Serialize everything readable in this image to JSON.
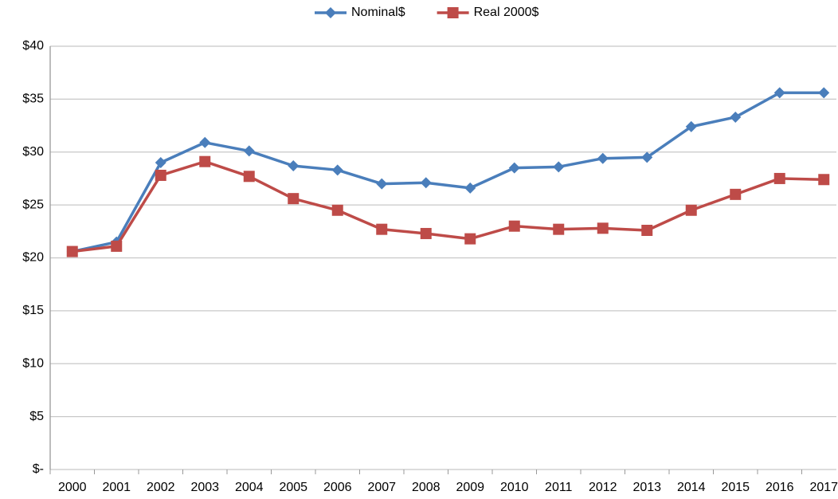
{
  "chart_data": {
    "type": "line",
    "categories": [
      "2000",
      "2001",
      "2002",
      "2003",
      "2004",
      "2005",
      "2006",
      "2007",
      "2008",
      "2009",
      "2010",
      "2011",
      "2012",
      "2013",
      "2014",
      "2015",
      "2016",
      "2017"
    ],
    "series": [
      {
        "name": "Nominal$",
        "color": "#4a7ebb",
        "marker": "diamond",
        "values": [
          20.6,
          21.5,
          29.0,
          30.9,
          30.1,
          28.7,
          28.3,
          27.0,
          27.1,
          26.6,
          28.5,
          28.6,
          29.4,
          29.5,
          32.4,
          33.3,
          35.6,
          35.6
        ]
      },
      {
        "name": "Real 2000$",
        "color": "#be4b48",
        "marker": "square",
        "values": [
          20.6,
          21.1,
          27.8,
          29.1,
          27.7,
          25.6,
          24.5,
          22.7,
          22.3,
          21.8,
          23.0,
          22.7,
          22.8,
          22.6,
          24.5,
          26.0,
          27.5,
          27.4
        ]
      }
    ],
    "ylim": [
      0,
      40
    ],
    "yticks": [
      {
        "value": 0,
        "label": "$-"
      },
      {
        "value": 5,
        "label": "$5"
      },
      {
        "value": 10,
        "label": "$10"
      },
      {
        "value": 15,
        "label": "$15"
      },
      {
        "value": 20,
        "label": "$20"
      },
      {
        "value": 25,
        "label": "$25"
      },
      {
        "value": 30,
        "label": "$30"
      },
      {
        "value": 35,
        "label": "$35"
      },
      {
        "value": 40,
        "label": "$40"
      }
    ],
    "grid": true,
    "legend": "top"
  }
}
